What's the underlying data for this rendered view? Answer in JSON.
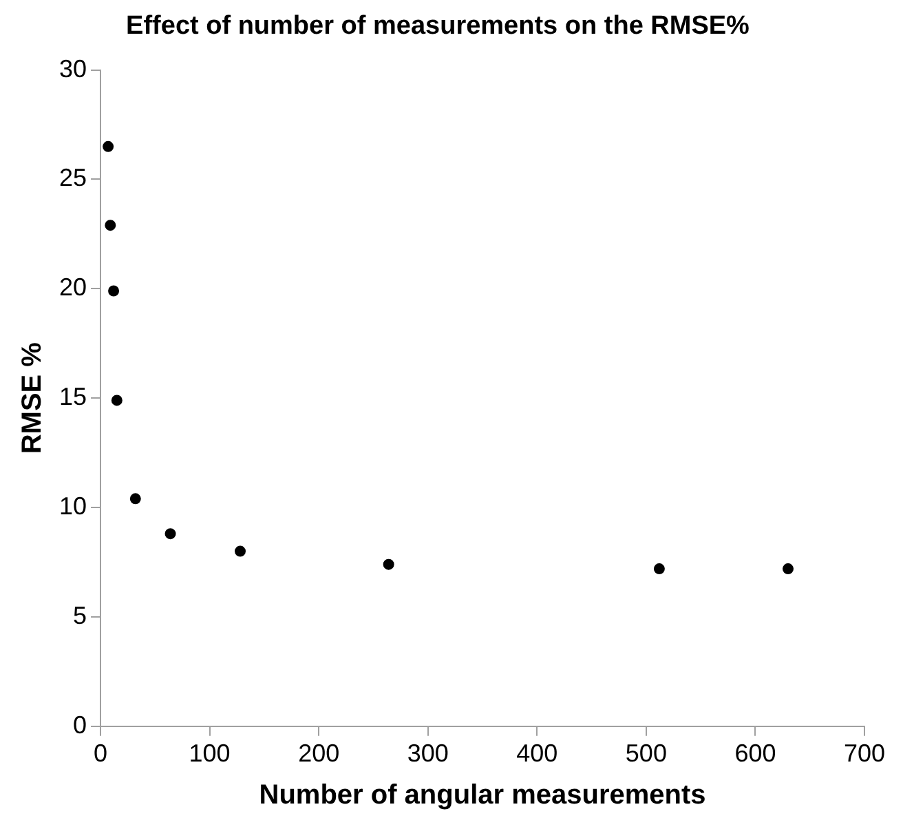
{
  "chart_data": {
    "type": "scatter",
    "title": "Effect of number of measurements on the RMSE%",
    "xlabel": "Number of angular measurements",
    "ylabel": "RMSE %",
    "x": [
      7,
      9,
      12,
      15,
      32,
      64,
      128,
      264,
      512,
      630
    ],
    "values": [
      26.5,
      22.9,
      19.9,
      14.9,
      10.4,
      8.8,
      8.0,
      7.4,
      7.2,
      7.2
    ],
    "color": "#000000",
    "marker": "circle",
    "xlim": [
      0,
      700
    ],
    "xticks": [
      0,
      100,
      200,
      300,
      400,
      500,
      600,
      700
    ],
    "ylim": [
      0,
      30
    ],
    "yticks": [
      0,
      5,
      10,
      15,
      20,
      25,
      30
    ],
    "grid": false,
    "legend": false
  }
}
